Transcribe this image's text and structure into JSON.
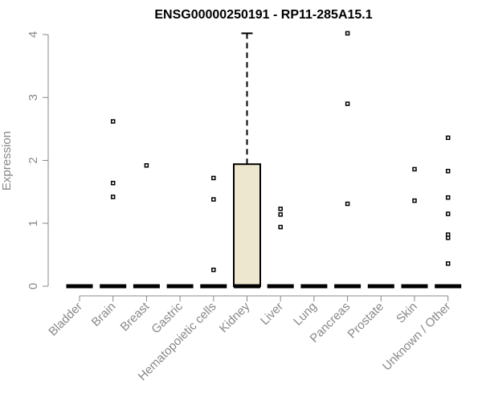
{
  "chart_data": {
    "type": "boxplot",
    "title": "ENSG00000250191 - RP11-285A15.1",
    "xlabel": "",
    "ylabel": "Expression",
    "ylim": [
      0,
      4
    ],
    "yticks": [
      0,
      1,
      2,
      3,
      4
    ],
    "grid": false,
    "legend": "none",
    "box_fill": "#ede7cf",
    "categories": [
      "Bladder",
      "Brain",
      "Breast",
      "Gastric",
      "Hematopoietic cells",
      "Kidney",
      "Liver",
      "Lung",
      "Pancreas",
      "Prostate",
      "Skin",
      "Unknown / Other"
    ],
    "boxes": [
      {
        "category": "Bladder",
        "min": 0,
        "q1": 0,
        "median": 0,
        "q3": 0,
        "max": 0,
        "outliers": []
      },
      {
        "category": "Brain",
        "min": 0,
        "q1": 0,
        "median": 0,
        "q3": 0,
        "max": 0,
        "outliers": [
          2.62,
          1.64,
          1.42
        ]
      },
      {
        "category": "Breast",
        "min": 0,
        "q1": 0,
        "median": 0,
        "q3": 0,
        "max": 0,
        "outliers": [
          1.92
        ]
      },
      {
        "category": "Gastric",
        "min": 0,
        "q1": 0,
        "median": 0,
        "q3": 0,
        "max": 0,
        "outliers": []
      },
      {
        "category": "Hematopoietic cells",
        "min": 0,
        "q1": 0,
        "median": 0,
        "q3": 0,
        "max": 0,
        "outliers": [
          1.72,
          1.38,
          0.26
        ]
      },
      {
        "category": "Kidney",
        "min": 0,
        "q1": 0,
        "median": 0,
        "q3": 1.94,
        "max": 4.02,
        "outliers": []
      },
      {
        "category": "Liver",
        "min": 0,
        "q1": 0,
        "median": 0,
        "q3": 0,
        "max": 0,
        "outliers": [
          1.23,
          1.14,
          0.94
        ]
      },
      {
        "category": "Lung",
        "min": 0,
        "q1": 0,
        "median": 0,
        "q3": 0,
        "max": 0,
        "outliers": []
      },
      {
        "category": "Pancreas",
        "min": 0,
        "q1": 0,
        "median": 0,
        "q3": 0,
        "max": 0,
        "outliers": [
          4.02,
          2.9,
          1.31
        ]
      },
      {
        "category": "Prostate",
        "min": 0,
        "q1": 0,
        "median": 0,
        "q3": 0,
        "max": 0,
        "outliers": []
      },
      {
        "category": "Skin",
        "min": 0,
        "q1": 0,
        "median": 0,
        "q3": 0,
        "max": 0,
        "outliers": [
          1.86,
          1.36
        ]
      },
      {
        "category": "Unknown / Other",
        "min": 0,
        "q1": 0,
        "median": 0,
        "q3": 0,
        "max": 0,
        "outliers": [
          2.36,
          1.83,
          1.41,
          1.15,
          0.82,
          0.77,
          0.36
        ]
      }
    ]
  }
}
